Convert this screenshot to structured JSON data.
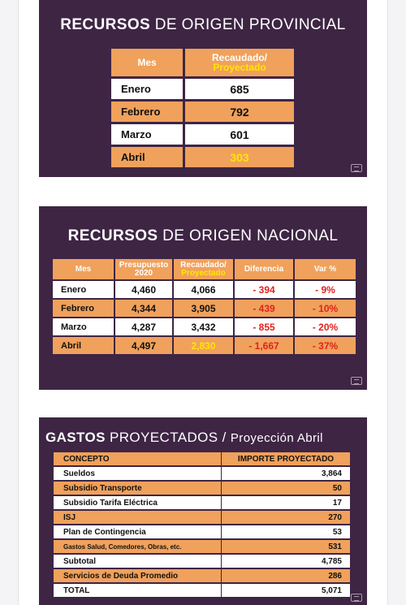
{
  "provincial": {
    "title_bold": "RECURSOS",
    "title_rest": " DE ORIGEN PROVINCIAL",
    "headers": {
      "mes": "Mes",
      "recaudado_1": "Recaudado/",
      "recaudado_2": "Proyectado"
    },
    "rows": [
      {
        "mes": "Enero",
        "valor": "685"
      },
      {
        "mes": "Febrero",
        "valor": "792"
      },
      {
        "mes": "Marzo",
        "valor": "601"
      },
      {
        "mes": "Abril",
        "valor": "303"
      }
    ]
  },
  "nacional": {
    "title_bold": "RECURSOS",
    "title_rest": " DE ORIGEN NACIONAL",
    "headers": {
      "mes": "Mes",
      "presupuesto_1": "Presupuesto",
      "presupuesto_2": "2020",
      "recaudado_1": "Recaudado/",
      "recaudado_2": "Proyectado",
      "diferencia": "Diferencia",
      "var": "Var %"
    },
    "rows": [
      {
        "mes": "Enero",
        "presupuesto": "4,460",
        "recaudado": "4,066",
        "diferencia": "- 394",
        "var": "- 9%"
      },
      {
        "mes": "Febrero",
        "presupuesto": "4,344",
        "recaudado": "3,905",
        "diferencia": "- 439",
        "var": "- 10%"
      },
      {
        "mes": "Marzo",
        "presupuesto": "4,287",
        "recaudado": "3,432",
        "diferencia": "- 855",
        "var": "- 20%"
      },
      {
        "mes": "Abril",
        "presupuesto": "4,497",
        "recaudado": "2,830",
        "diferencia": "- 1,667",
        "var": "- 37%"
      }
    ]
  },
  "gastos": {
    "title_bold": "GASTOS",
    "title_mid": " PROYECTADOS / ",
    "title_sub": "Proyección Abril",
    "headers": {
      "concepto": "CONCEPTO",
      "importe": "IMPORTE PROYECTADO"
    },
    "rows": [
      {
        "concepto": "Sueldos",
        "importe": "3,864"
      },
      {
        "concepto": "Subsidio Transporte",
        "importe": "50"
      },
      {
        "concepto": "Subsidio Tarifa Eléctrica",
        "importe": "17"
      },
      {
        "concepto": "ISJ",
        "importe": "270"
      },
      {
        "concepto": "Plan de Contingencia",
        "importe": "53"
      },
      {
        "concepto": "Gastos Salud, Comedores, Obras, etc.",
        "importe": "531"
      },
      {
        "concepto": "Subtotal",
        "importe": "4,785"
      },
      {
        "concepto": "Servicios de Deuda Promedio",
        "importe": "286"
      },
      {
        "concepto": "TOTAL",
        "importe": "5,071"
      }
    ]
  },
  "colors": {
    "slide_bg": "#3e2544",
    "orange": "#f0a15b",
    "highlight_yellow": "#ffe600",
    "negative_red": "#e3211f"
  },
  "icons": {
    "slide_logo": "government-seal-icon"
  }
}
